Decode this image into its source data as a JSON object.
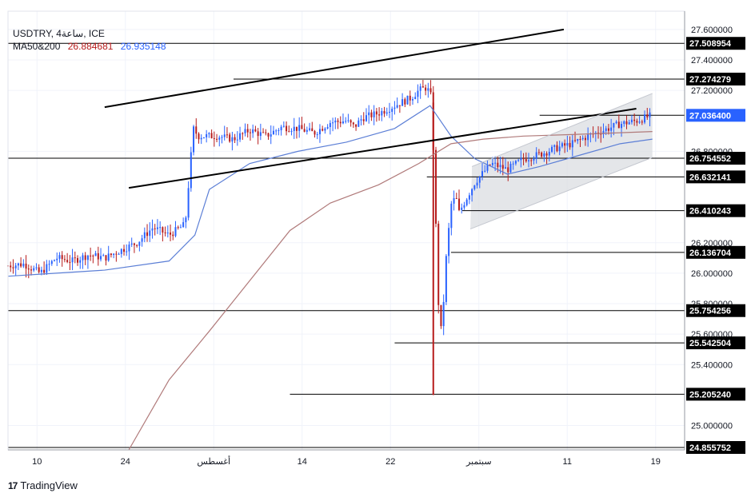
{
  "header": {
    "symbol_line": "USDTRY, 4ساعة, ICE",
    "ma_label": "MA50&200",
    "ma50_value": "26.884681",
    "ma200_value": "26.935148"
  },
  "branding": {
    "logo_mark": "17",
    "logo_text": "TradingView"
  },
  "colors": {
    "up": "#2962ff",
    "down": "#b71c1c",
    "ma50": "#5c7fd6",
    "ma200": "#b07a7a",
    "trendline": "#000000",
    "channel_fill": "#d9dbe0",
    "current_badge": "#2962ff"
  },
  "chart_data": {
    "type": "line",
    "title": "",
    "xlabel": "",
    "ylabel": "",
    "ylim": [
      24.84,
      27.72
    ],
    "grid": true,
    "x_tick_labels": [
      "10",
      "24",
      "أغسطس",
      "14",
      "22",
      "سبتمبر",
      "11",
      "19"
    ],
    "y_tick_labels": [
      "27.600000",
      "27.400000",
      "27.200000",
      "26.800000",
      "26.200000",
      "26.000000",
      "25.800000",
      "25.600000",
      "25.400000",
      "25.000000"
    ],
    "price_levels": [
      {
        "label": "27.508954",
        "value": 27.508954
      },
      {
        "label": "27.274279",
        "value": 27.274279
      },
      {
        "label": "27.036400",
        "value": 27.0364,
        "current": true
      },
      {
        "label": "26.754552",
        "value": 26.754552
      },
      {
        "label": "26.632141",
        "value": 26.632141
      },
      {
        "label": "26.410243",
        "value": 26.410243
      },
      {
        "label": "26.136704",
        "value": 26.136704
      },
      {
        "label": "25.754256",
        "value": 25.754256
      },
      {
        "label": "25.542504",
        "value": 25.542504
      },
      {
        "label": "25.205240",
        "value": 25.20524
      },
      {
        "label": "24.855752",
        "value": 24.855752
      }
    ],
    "series": [
      {
        "name": "USDTRY",
        "kind": "close",
        "x": [
          0,
          10,
          20,
          30,
          40,
          50,
          60,
          70,
          80,
          90,
          100,
          110,
          115,
          118,
          122,
          130,
          140,
          150,
          160,
          170,
          180,
          190,
          200,
          210,
          215,
          220,
          230,
          240,
          250,
          255,
          260,
          263,
          265,
          268,
          270,
          272,
          275,
          278,
          280,
          285,
          290,
          300,
          310,
          320,
          330,
          340,
          350,
          360,
          370,
          380,
          390,
          400
        ],
        "y": [
          26.05,
          26.06,
          26.0,
          26.1,
          26.08,
          26.12,
          26.1,
          26.15,
          26.2,
          26.3,
          26.25,
          26.32,
          26.95,
          26.9,
          26.9,
          26.9,
          26.88,
          26.94,
          26.9,
          26.96,
          26.95,
          26.92,
          26.99,
          27.0,
          26.96,
          27.02,
          27.05,
          27.1,
          27.15,
          27.2,
          27.22,
          27.15,
          26.5,
          25.55,
          25.75,
          26.1,
          26.45,
          26.5,
          26.4,
          26.5,
          26.6,
          26.72,
          26.68,
          26.75,
          26.78,
          26.82,
          26.85,
          26.9,
          26.94,
          26.98,
          27.0,
          27.036
        ]
      },
      {
        "name": "MA50",
        "kind": "ma",
        "x": [
          0,
          30,
          60,
          100,
          116,
          125,
          150,
          180,
          210,
          240,
          262,
          275,
          290,
          310,
          330,
          350,
          380,
          400
        ],
        "y": [
          25.98,
          26.0,
          26.02,
          26.08,
          26.25,
          26.55,
          26.72,
          26.8,
          26.86,
          26.95,
          27.1,
          26.9,
          26.75,
          26.65,
          26.7,
          26.76,
          26.85,
          26.88
        ]
      },
      {
        "name": "MA200",
        "kind": "ma",
        "x": [
          75,
          100,
          125,
          150,
          175,
          200,
          230,
          255,
          275,
          295,
          320,
          350,
          400
        ],
        "y": [
          24.84,
          25.3,
          25.62,
          25.95,
          26.28,
          26.46,
          26.58,
          26.72,
          26.85,
          26.88,
          26.9,
          26.91,
          26.93
        ]
      }
    ],
    "trendlines": [
      {
        "x": [
          60,
          345
        ],
        "y": [
          27.09,
          27.6
        ]
      },
      {
        "x": [
          75,
          390
        ],
        "y": [
          26.56,
          27.08
        ]
      },
      {
        "x": [
          287,
          400
        ],
        "y": [
          26.29,
          26.76
        ]
      },
      {
        "x": [
          288,
          400
        ],
        "y": [
          26.7,
          27.18
        ]
      }
    ]
  }
}
